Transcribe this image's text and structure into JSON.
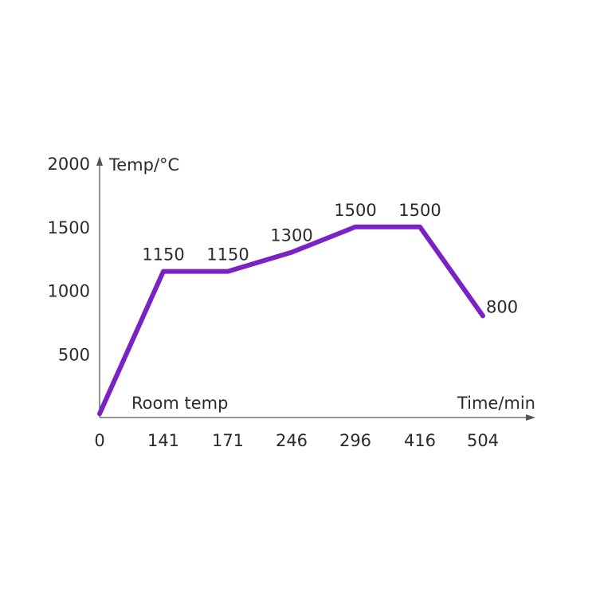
{
  "chart_data": {
    "type": "line",
    "ylabel": "Temp/°C",
    "xlabel": "Time/min",
    "start_label": "Room temp",
    "ylim": [
      0,
      2000
    ],
    "y_ticks": [
      "500",
      "1000",
      "1500",
      "2000"
    ],
    "x_tick_labels": [
      "0",
      "141",
      "171",
      "246",
      "296",
      "416",
      "504"
    ],
    "series": [
      {
        "color": "#7b22c4",
        "points": [
          {
            "x": "0",
            "y": 30,
            "label": ""
          },
          {
            "x": "141",
            "y": 1150,
            "label": "1150"
          },
          {
            "x": "171",
            "y": 1150,
            "label": "1150"
          },
          {
            "x": "246",
            "y": 1300,
            "label": "1300"
          },
          {
            "x": "296",
            "y": 1500,
            "label": "1500"
          },
          {
            "x": "416",
            "y": 1500,
            "label": "1500"
          },
          {
            "x": "504",
            "y": 800,
            "label": "800"
          }
        ]
      }
    ],
    "axis_color": "#555555"
  }
}
